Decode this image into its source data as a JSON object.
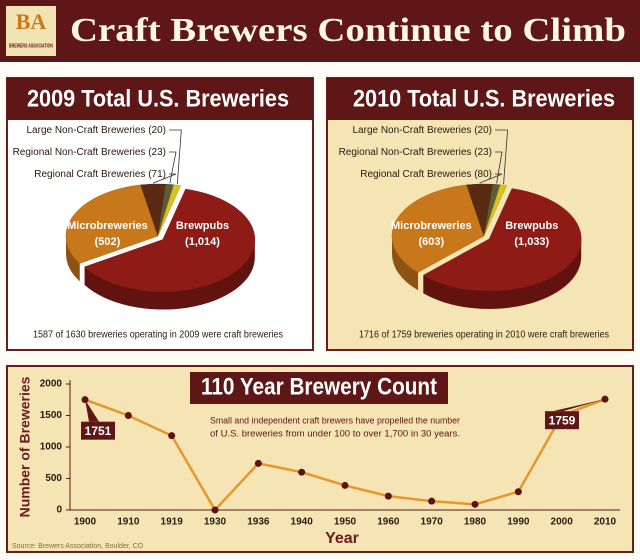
{
  "header": {
    "title": "Craft Brewers Continue to Climb",
    "logo": "BA",
    "logo_subtitle": "BREWERS ASSOCIATION"
  },
  "chart_data": [
    {
      "type": "pie",
      "title": "2009 Total U.S. Breweries",
      "categories": [
        "Brewpubs",
        "Microbreweries",
        "Regional Craft Breweries",
        "Regional Non-Craft Breweries",
        "Large Non-Craft Breweries"
      ],
      "values": [
        1014,
        502,
        71,
        23,
        20
      ],
      "value_labels": [
        "(1,014)",
        "(502)",
        "(71)",
        "(23)",
        "(20)"
      ],
      "colors": [
        "#8e1b16",
        "#c9771b",
        "#5b2a12",
        "#5f5b35",
        "#d9c21e"
      ],
      "note": "1587 of 1630 breweries operating in 2009 were craft breweries"
    },
    {
      "type": "pie",
      "title": "2010 Total U.S. Breweries",
      "categories": [
        "Brewpubs",
        "Microbreweries",
        "Regional Craft Breweries",
        "Regional Non-Craft Breweries",
        "Large Non-Craft Breweries"
      ],
      "values": [
        1033,
        603,
        80,
        23,
        20
      ],
      "value_labels": [
        "(1,033)",
        "(603)",
        "(80)",
        "(23)",
        "(20)"
      ],
      "colors": [
        "#8e1b16",
        "#c9771b",
        "#5b2a12",
        "#5f5b35",
        "#d9c21e"
      ],
      "note": "1716 of 1759 breweries operating in 2010 were craft breweries"
    },
    {
      "type": "line",
      "title": "110 Year Brewery Count",
      "annotation": [
        "Small and independent craft brewers have propelled the number",
        "of U.S. breweries from under 100 to over 1,700 in 30 years."
      ],
      "categories": [
        "1900",
        "1910",
        "1919",
        "1930",
        "1936",
        "1940",
        "1950",
        "1960",
        "1970",
        "1980",
        "1990",
        "2000",
        "2010"
      ],
      "values": [
        1751,
        1500,
        1180,
        0,
        740,
        600,
        390,
        220,
        140,
        90,
        290,
        1500,
        1759
      ],
      "color": "#e8952c",
      "marker_color": "#5a1414",
      "ylim": [
        0,
        2000
      ],
      "yticks": [
        0,
        500,
        1000,
        1500,
        2000
      ],
      "xlabel": "Year",
      "ylabel": "Number of Breweries"
    }
  ],
  "source": "Source: Brewers Association, Boulder, CO"
}
